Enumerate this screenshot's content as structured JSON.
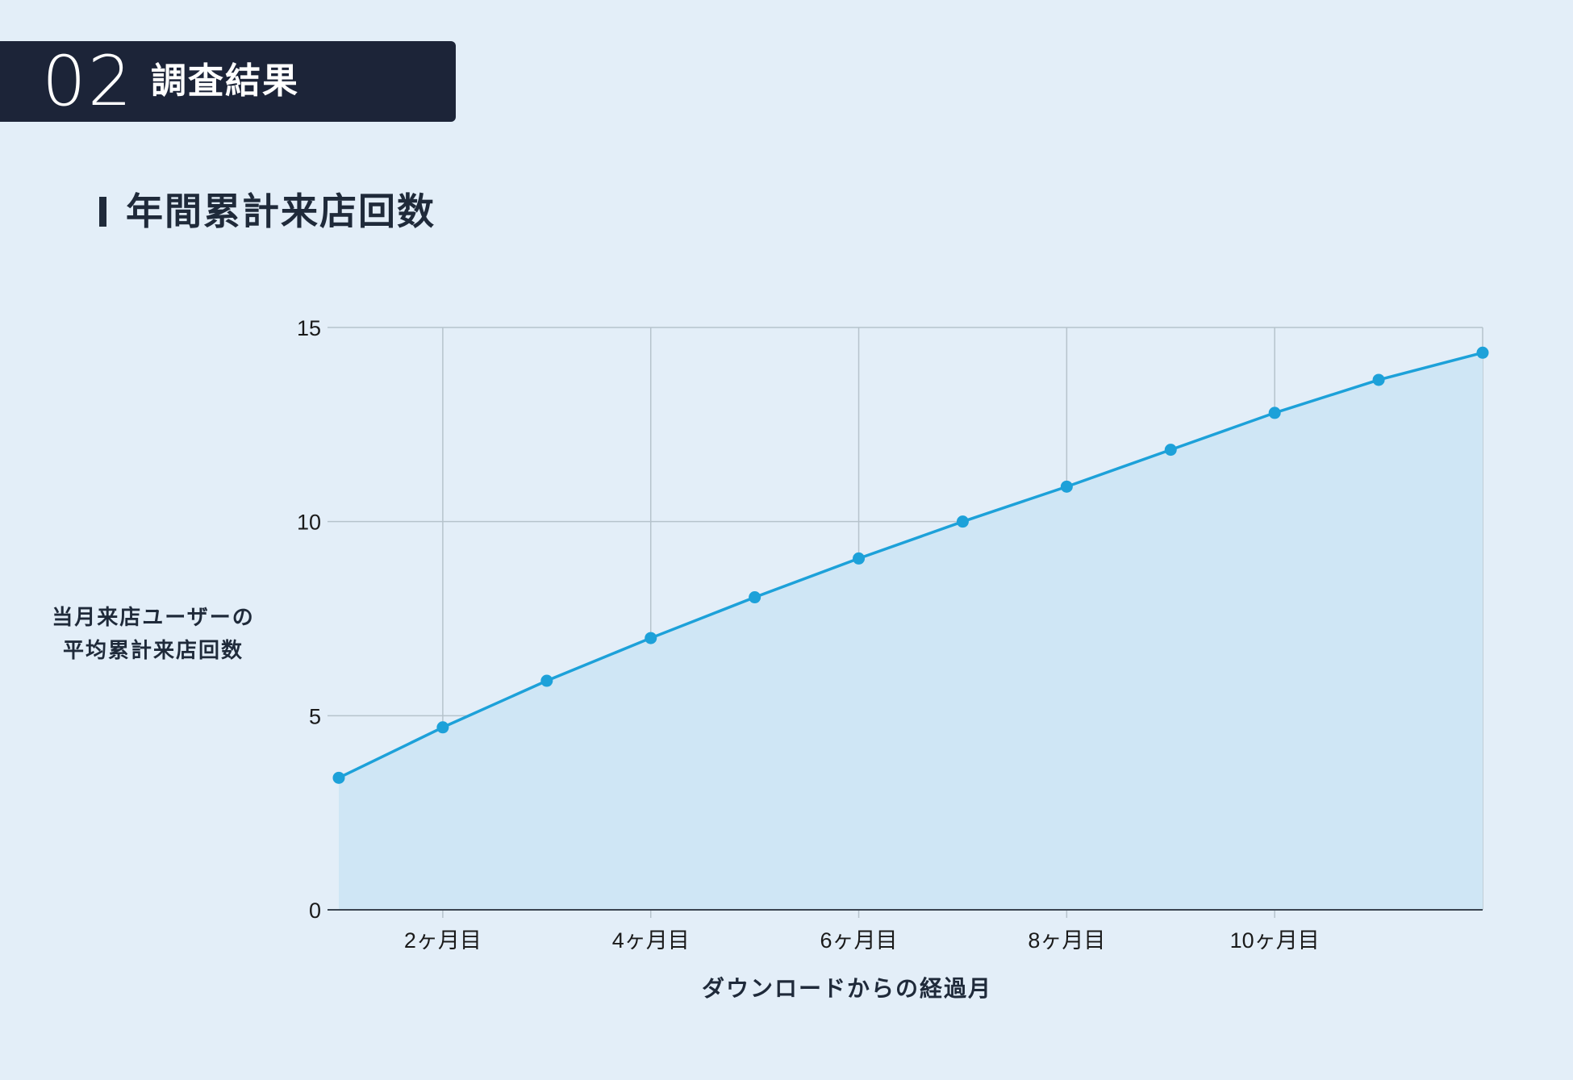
{
  "header": {
    "section_number": "02",
    "section_title": "調査結果"
  },
  "chart_title": "年間累計来店回数",
  "colors": {
    "background": "#e3eef8",
    "header_bg": "#1c2438",
    "line": "#1da1d9",
    "area_fill": "#cfe6f5",
    "grid": "#b6c3cc"
  },
  "chart_data": {
    "type": "area",
    "title": "年間累計来店回数",
    "xlabel": "ダウンロードからの経過月",
    "ylabel_lines": [
      "当月来店ユーザーの",
      "平均累計来店回数"
    ],
    "x": [
      1,
      2,
      3,
      4,
      5,
      6,
      7,
      8,
      9,
      10,
      11,
      12
    ],
    "series": [
      {
        "values": [
          3.4,
          4.7,
          5.9,
          7.0,
          8.05,
          9.05,
          10.0,
          10.9,
          11.85,
          12.8,
          13.65,
          14.35
        ]
      }
    ],
    "xlim": [
      1,
      12
    ],
    "ylim": [
      0,
      15
    ],
    "yticks": [
      0,
      5,
      10,
      15
    ],
    "xticks": [
      2,
      4,
      6,
      8,
      10
    ],
    "xtick_labels": [
      "2ヶ月目",
      "4ヶ月目",
      "6ヶ月目",
      "8ヶ月目",
      "10ヶ月目"
    ],
    "grid": true,
    "markers": true
  }
}
